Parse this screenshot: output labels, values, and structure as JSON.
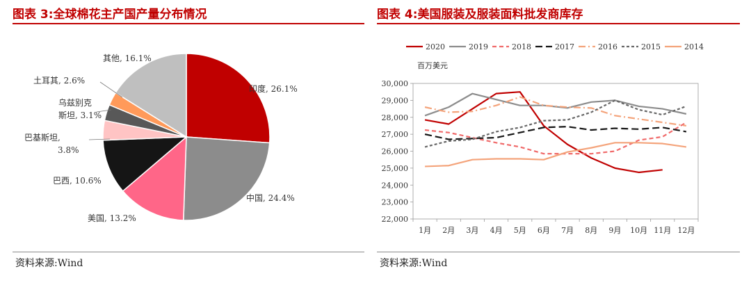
{
  "left": {
    "title": "图表 3:全球棉花主产国产量分布情况",
    "source": "资料来源:Wind"
  },
  "right": {
    "title": "图表 4:美国服装及服装面料批发商库存",
    "source": "资料来源:Wind"
  },
  "chart_data": [
    {
      "type": "pie",
      "title": "",
      "slices": [
        {
          "label": "印度",
          "value": 26.1,
          "display": "印度, 26.1%",
          "color": "#c00000"
        },
        {
          "label": "中国",
          "value": 24.4,
          "display": "中国, 24.4%",
          "color": "#8c8c8c"
        },
        {
          "label": "美国",
          "value": 13.2,
          "display": "美国, 13.2%",
          "color": "#ff6688"
        },
        {
          "label": "巴西",
          "value": 10.6,
          "display": "巴西, 10.6%",
          "color": "#151515"
        },
        {
          "label": "巴基斯坦",
          "value": 3.8,
          "display_lines": [
            "巴基斯坦,",
            "3.8%"
          ],
          "color": "#ffc4c4"
        },
        {
          "label": "乌兹别克斯坦",
          "value": 3.1,
          "display_lines": [
            "乌兹别克",
            "斯坦, 3.1%"
          ],
          "color": "#585858"
        },
        {
          "label": "土耳其",
          "value": 2.6,
          "display": "土耳其, 2.6%",
          "color": "#ff9a5a"
        },
        {
          "label": "其他",
          "value": 16.1,
          "display": "其他, 16.1%",
          "color": "#bfbfbf"
        }
      ]
    },
    {
      "type": "line",
      "title": "",
      "ylabel": "百万美元",
      "categories": [
        "1月",
        "2月",
        "3月",
        "4月",
        "5月",
        "6月",
        "7月",
        "8月",
        "9月",
        "10月",
        "11月",
        "12月"
      ],
      "ylim": [
        22000,
        30000
      ],
      "yticks": [
        "22,000",
        "23,000",
        "24,000",
        "25,000",
        "26,000",
        "27,000",
        "28,000",
        "29,000",
        "30,000"
      ],
      "legend_position": "top",
      "series": [
        {
          "name": "2020",
          "color": "#c00000",
          "dash": "solid",
          "values": [
            27850,
            27600,
            28500,
            29400,
            29500,
            27500,
            26400,
            25600,
            25000,
            24750,
            24900,
            null
          ]
        },
        {
          "name": "2019",
          "color": "#8c8c8c",
          "dash": "solid",
          "values": [
            28100,
            28600,
            29400,
            29050,
            28700,
            28700,
            28550,
            28900,
            29000,
            28650,
            28500,
            28200
          ]
        },
        {
          "name": "2018",
          "color": "#f06a6a",
          "dash": "dash",
          "values": [
            27250,
            27100,
            26800,
            26500,
            26250,
            25850,
            25850,
            25850,
            26000,
            26650,
            26850,
            27700
          ]
        },
        {
          "name": "2017",
          "color": "#151515",
          "dash": "longdash",
          "values": [
            27000,
            26700,
            26750,
            26800,
            27100,
            27400,
            27450,
            27250,
            27350,
            27300,
            27400,
            27150
          ]
        },
        {
          "name": "2016",
          "color": "#f4a37a",
          "dash": "dashdot",
          "values": [
            28600,
            28300,
            28350,
            28700,
            29200,
            28700,
            28600,
            28550,
            28100,
            27900,
            27700,
            27500
          ]
        },
        {
          "name": "2015",
          "color": "#666666",
          "dash": "dot",
          "values": [
            26250,
            26600,
            26700,
            27150,
            27400,
            27800,
            27850,
            28300,
            29000,
            28450,
            28150,
            28650
          ]
        },
        {
          "name": "2014",
          "color": "#f4a37a",
          "dash": "solid",
          "values": [
            25100,
            25150,
            25500,
            25550,
            25550,
            25500,
            25950,
            26200,
            26500,
            26500,
            26450,
            26250
          ]
        }
      ]
    }
  ]
}
